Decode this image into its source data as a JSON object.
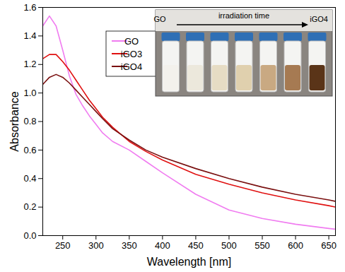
{
  "chart_data": {
    "type": "line",
    "x_label": "Wavelength [nm]",
    "y_label": "Absorbance",
    "x": [
      220,
      230,
      240,
      250,
      260,
      270,
      280,
      290,
      300,
      310,
      325,
      350,
      375,
      400,
      450,
      500,
      550,
      600,
      650,
      660
    ],
    "series": [
      {
        "name": "GO",
        "color": "#f07cf0",
        "values": [
          1.47,
          1.54,
          1.47,
          1.3,
          1.12,
          0.99,
          0.91,
          0.84,
          0.78,
          0.72,
          0.66,
          0.6,
          0.52,
          0.44,
          0.29,
          0.18,
          0.12,
          0.08,
          0.05,
          0.045
        ]
      },
      {
        "name": "iGO3",
        "color": "#e01010",
        "values": [
          1.24,
          1.27,
          1.27,
          1.22,
          1.16,
          1.09,
          1.02,
          0.95,
          0.89,
          0.83,
          0.76,
          0.66,
          0.59,
          0.53,
          0.43,
          0.36,
          0.3,
          0.25,
          0.21,
          0.2
        ]
      },
      {
        "name": "iGO4",
        "color": "#7a1010",
        "values": [
          1.06,
          1.11,
          1.13,
          1.11,
          1.07,
          1.02,
          0.97,
          0.92,
          0.87,
          0.82,
          0.75,
          0.67,
          0.6,
          0.55,
          0.47,
          0.4,
          0.34,
          0.29,
          0.25,
          0.24
        ]
      }
    ],
    "xlim": [
      220,
      660
    ],
    "xticks": [
      250,
      300,
      350,
      400,
      450,
      500,
      550,
      600,
      650
    ],
    "ylim": [
      0,
      1.6
    ],
    "yticks": [
      {
        "value": 0,
        "label": "0.0"
      },
      {
        "value": 0.2,
        "label": "0.2"
      },
      {
        "value": 0.4,
        "label": "0.4"
      },
      {
        "value": 0.6,
        "label": "0.6"
      },
      {
        "value": 0.8,
        "label": "0.8"
      },
      {
        "value": 1.0,
        "label": "1.0"
      },
      {
        "value": 1.2,
        "label": "1.2"
      },
      {
        "value": 1.4,
        "label": "1.4"
      },
      {
        "value": 1.6,
        "label": "1.6"
      }
    ],
    "grid": false,
    "legend": "upper left",
    "annotations": [
      "GO",
      "irradiation time",
      "iGO4"
    ]
  }
}
